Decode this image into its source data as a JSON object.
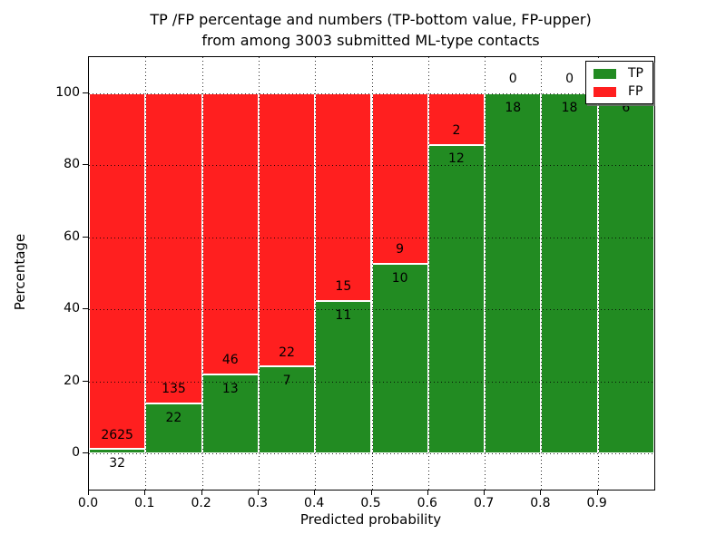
{
  "colors": {
    "tp": "#228b22",
    "fp": "#ff1f1f",
    "axis": "#000000",
    "grid": "#000000",
    "background": "#ffffff",
    "label_text": "#000000"
  },
  "chart_data": {
    "type": "bar",
    "stacked": true,
    "normalized": "percent",
    "title_lines": [
      "TP /FP percentage and numbers (TP-bottom value, FP-upper)",
      "from among 3003 submitted ML-type contacts"
    ],
    "xlabel": "Predicted probability",
    "ylabel": "Percentage",
    "total_submitted_contacts": 3003,
    "categories": [
      "0.0",
      "0.1",
      "0.2",
      "0.3",
      "0.4",
      "0.5",
      "0.6",
      "0.7",
      "0.8",
      "0.9"
    ],
    "bin_width": 0.1,
    "xlim": [
      0.0,
      1.0
    ],
    "ylim": [
      -10,
      110
    ],
    "yticks": [
      0,
      20,
      40,
      60,
      80,
      100
    ],
    "yticklabels": [
      "0",
      "20",
      "40",
      "60",
      "80",
      "100"
    ],
    "grid": true,
    "series": [
      {
        "name": "TP",
        "color_key": "tp",
        "counts": [
          32,
          22,
          13,
          7,
          11,
          10,
          12,
          18,
          18,
          6
        ],
        "percent": [
          1.2,
          14.0,
          22.0,
          24.1,
          42.3,
          52.6,
          85.7,
          100.0,
          100.0,
          100.0
        ]
      },
      {
        "name": "FP",
        "color_key": "fp",
        "counts": [
          2625,
          135,
          46,
          22,
          15,
          9,
          2,
          0,
          0,
          0
        ],
        "percent": [
          98.8,
          86.0,
          78.0,
          75.9,
          57.7,
          47.4,
          14.3,
          0.0,
          0.0,
          0.0
        ]
      }
    ],
    "legend": {
      "position": "upper right",
      "items": [
        {
          "key": "tp",
          "label": "TP",
          "color": "#228b22"
        },
        {
          "key": "fp",
          "label": "FP",
          "color": "#ff1f1f"
        }
      ]
    }
  }
}
